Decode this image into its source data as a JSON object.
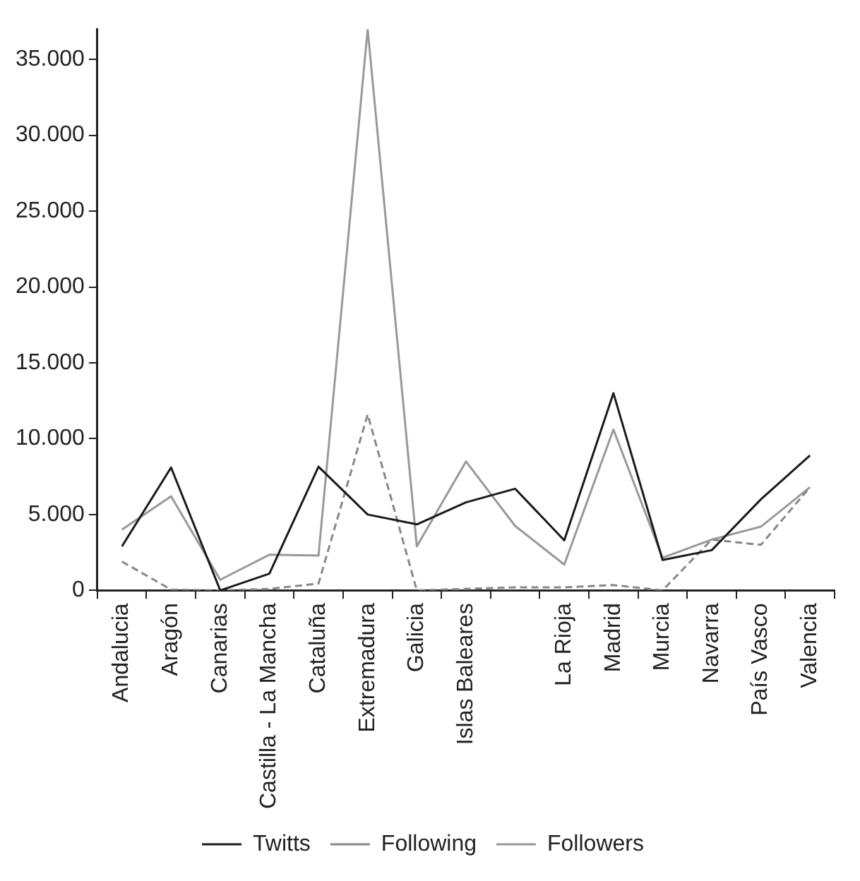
{
  "chart_data": {
    "type": "line",
    "categories": [
      "Andalucia",
      "Aragón",
      "Canarias",
      "Castilla - La Mancha",
      "Cataluña",
      "Extremadura",
      "Galicia",
      "Islas Baleares",
      null,
      "La Rioja",
      "Madrid",
      "Murcia",
      "Navarra",
      "País Vasco",
      "Valencia"
    ],
    "series": [
      {
        "name": "Twitts",
        "color": "#1a1a1a",
        "line_style": "solid",
        "values": [
          2900,
          8100,
          0,
          1100,
          8150,
          5000,
          4350,
          5800,
          6700,
          3300,
          13000,
          2000,
          2650,
          6000,
          8900
        ]
      },
      {
        "name": "Following",
        "color": "#888888",
        "line_style": "dashed",
        "values": [
          1900,
          50,
          0,
          100,
          450,
          11600,
          0,
          100,
          200,
          200,
          350,
          0,
          3350,
          3000,
          6800
        ]
      },
      {
        "name": "Followers",
        "color": "#999999",
        "line_style": "solid",
        "values": [
          4000,
          6200,
          700,
          2350,
          2300,
          37000,
          2900,
          8500,
          4250,
          1700,
          10600,
          2150,
          3350,
          4200,
          6800
        ]
      }
    ],
    "ylim": [
      0,
      37000
    ],
    "yticks": [
      {
        "value": 0,
        "label": "0"
      },
      {
        "value": 5000,
        "label": "5.000"
      },
      {
        "value": 10000,
        "label": "10.000"
      },
      {
        "value": 15000,
        "label": "15.000"
      },
      {
        "value": 20000,
        "label": "20.000"
      },
      {
        "value": 25000,
        "label": "25.000"
      },
      {
        "value": 30000,
        "label": "30.000"
      },
      {
        "value": 35000,
        "label": "35.000"
      }
    ],
    "grid": false,
    "legend": "bottom",
    "marker": "none"
  }
}
